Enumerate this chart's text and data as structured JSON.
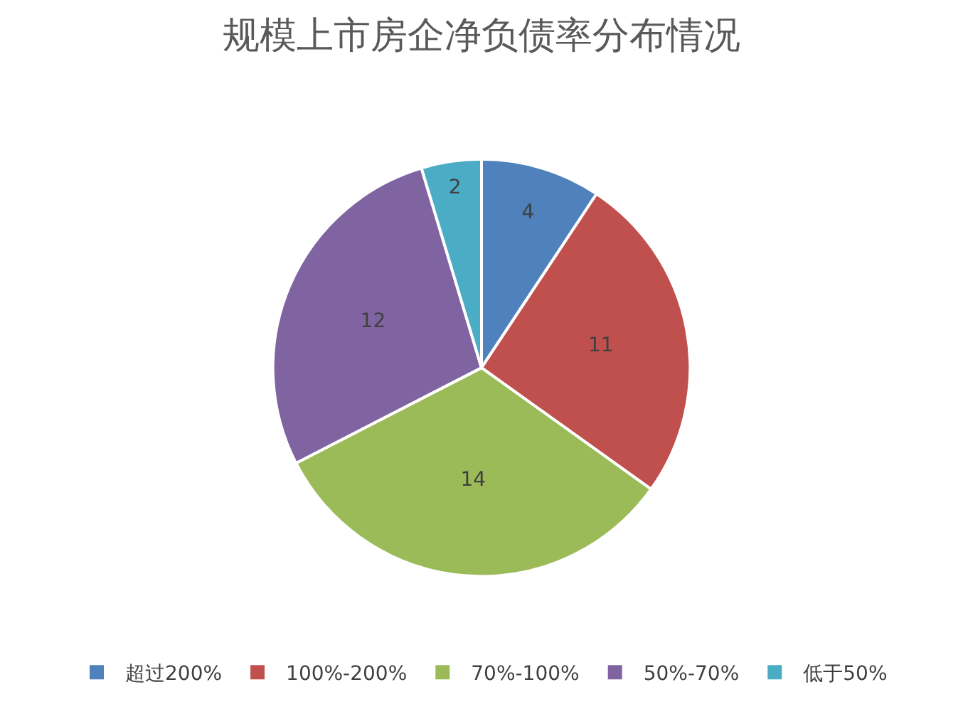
{
  "chart_data": {
    "type": "pie",
    "title": "规模上市房企净负债率分布情况",
    "categories": [
      "超过200%",
      "100%-200%",
      "70%-100%",
      "50%-70%",
      "低于50%"
    ],
    "values": [
      4,
      11,
      14,
      12,
      2
    ],
    "colors": [
      "#4f81bd",
      "#c0504d",
      "#9bbb59",
      "#8064a2",
      "#4bacc6"
    ],
    "data_labels": true,
    "legend": "bottom"
  }
}
